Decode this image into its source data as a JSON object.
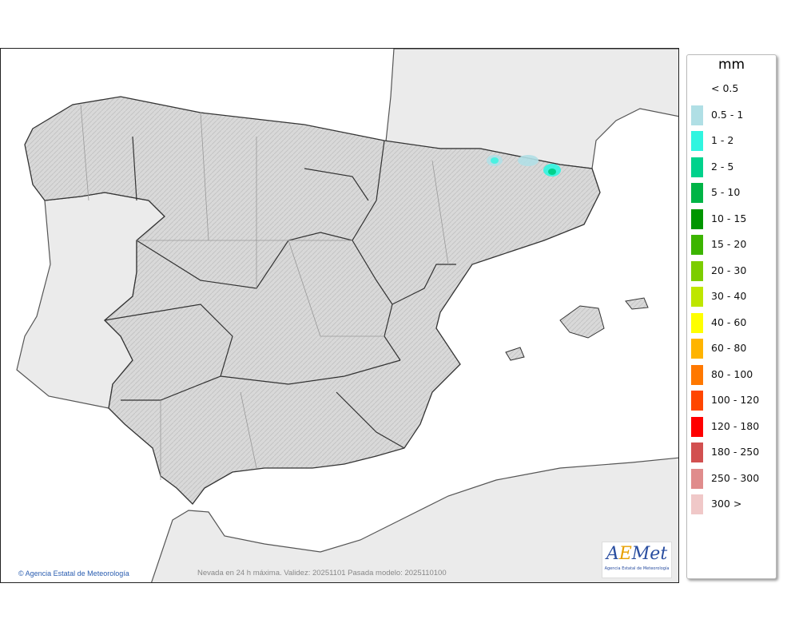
{
  "legend": {
    "unit": "mm",
    "items": [
      {
        "label": "< 0.5",
        "color": ""
      },
      {
        "label": "0.5 - 1",
        "color": "#b0dfe5"
      },
      {
        "label": "1 - 2",
        "color": "#30f5e0"
      },
      {
        "label": "2 - 5",
        "color": "#00d28c"
      },
      {
        "label": "5 - 10",
        "color": "#00b446"
      },
      {
        "label": "10 - 15",
        "color": "#009600"
      },
      {
        "label": "15 - 20",
        "color": "#3cb400"
      },
      {
        "label": "20 - 30",
        "color": "#7ccd00"
      },
      {
        "label": "30 - 40",
        "color": "#bee600"
      },
      {
        "label": "40 - 60",
        "color": "#ffff00"
      },
      {
        "label": "60 - 80",
        "color": "#ffb400"
      },
      {
        "label": "80 - 100",
        "color": "#ff7800"
      },
      {
        "label": "100 - 120",
        "color": "#ff4600"
      },
      {
        "label": "120 - 180",
        "color": "#ff0000"
      },
      {
        "label": "180 - 250",
        "color": "#d25050"
      },
      {
        "label": "250 - 300",
        "color": "#e08c8c"
      },
      {
        "label": "300 >",
        "color": "#f0c8c8"
      }
    ]
  },
  "map": {
    "credit": "© Agencia Estatal de Meteorología",
    "caption": "Nevada en 24 h máxima. Validez: 20251101 Pasada modelo: 2025110100",
    "logo": {
      "text": "AEMet",
      "subtitle": "Agencia Estatal de Meteorología"
    }
  }
}
